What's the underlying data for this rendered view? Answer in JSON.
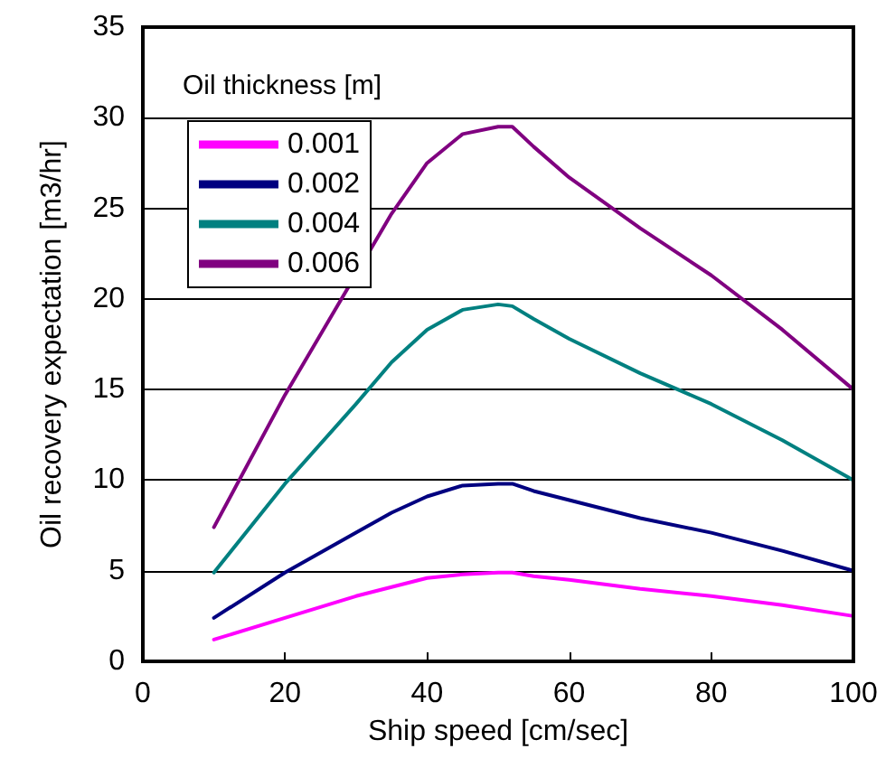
{
  "chart_data": {
    "type": "line",
    "xlabel": "Ship speed [cm/sec]",
    "ylabel": "Oil recovery expectation [m3/hr]",
    "legend_title": "Oil thickness [m]",
    "x": [
      10,
      20,
      30,
      35,
      40,
      45,
      50,
      52,
      55,
      60,
      70,
      80,
      90,
      100
    ],
    "series": [
      {
        "name": "0.001",
        "color": "#ff00ff",
        "values": [
          1.2,
          2.4,
          3.6,
          4.1,
          4.6,
          4.8,
          4.9,
          4.9,
          4.7,
          4.5,
          4.0,
          3.6,
          3.1,
          2.5
        ]
      },
      {
        "name": "0.002",
        "color": "#000080",
        "values": [
          2.4,
          4.9,
          7.1,
          8.2,
          9.1,
          9.7,
          9.8,
          9.8,
          9.4,
          8.9,
          7.9,
          7.1,
          6.1,
          5.0
        ]
      },
      {
        "name": "0.004",
        "color": "#008080",
        "values": [
          4.9,
          9.8,
          14.2,
          16.5,
          18.3,
          19.4,
          19.7,
          19.6,
          18.9,
          17.8,
          15.9,
          14.2,
          12.2,
          10.0
        ]
      },
      {
        "name": "0.006",
        "color": "#800080",
        "x": [
          10,
          20,
          35,
          40,
          45,
          50,
          52,
          55,
          60,
          70,
          80,
          90,
          100
        ],
        "values": [
          7.4,
          14.7,
          24.7,
          27.5,
          29.1,
          29.5,
          29.5,
          28.4,
          26.7,
          23.9,
          21.3,
          18.3,
          15.0
        ]
      }
    ],
    "xlim": [
      0,
      100
    ],
    "xticks": [
      0,
      20,
      40,
      60,
      80,
      100
    ],
    "ylim": [
      0,
      35
    ],
    "yticks": [
      0,
      5,
      10,
      15,
      20,
      25,
      30,
      35
    ],
    "grid": "y",
    "legend": "top left",
    "marker": "none",
    "line_style": "solid"
  }
}
